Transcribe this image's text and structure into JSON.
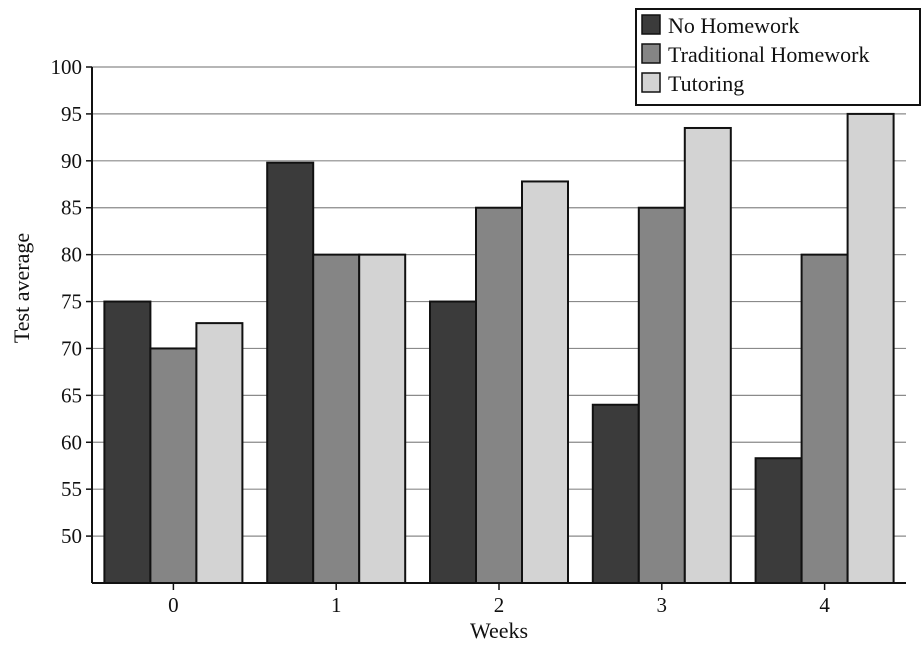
{
  "chart_data": {
    "type": "bar",
    "xlabel": "Weeks",
    "ylabel": "Test average",
    "categories": [
      "0",
      "1",
      "2",
      "3",
      "4"
    ],
    "ylim": [
      45,
      100
    ],
    "yticks": [
      50,
      55,
      60,
      65,
      70,
      75,
      80,
      85,
      90,
      95,
      100
    ],
    "grid": true,
    "legend_position": "top-right",
    "series": [
      {
        "name": "No Homework",
        "color": "#3b3b3b",
        "values": [
          75,
          89.8,
          75,
          64,
          58.3
        ]
      },
      {
        "name": "Traditional Homework",
        "color": "#858585",
        "values": [
          70,
          80,
          85,
          85,
          80
        ]
      },
      {
        "name": "Tutoring",
        "color": "#d3d3d3",
        "values": [
          72.7,
          80,
          87.8,
          93.5,
          95
        ]
      }
    ]
  }
}
